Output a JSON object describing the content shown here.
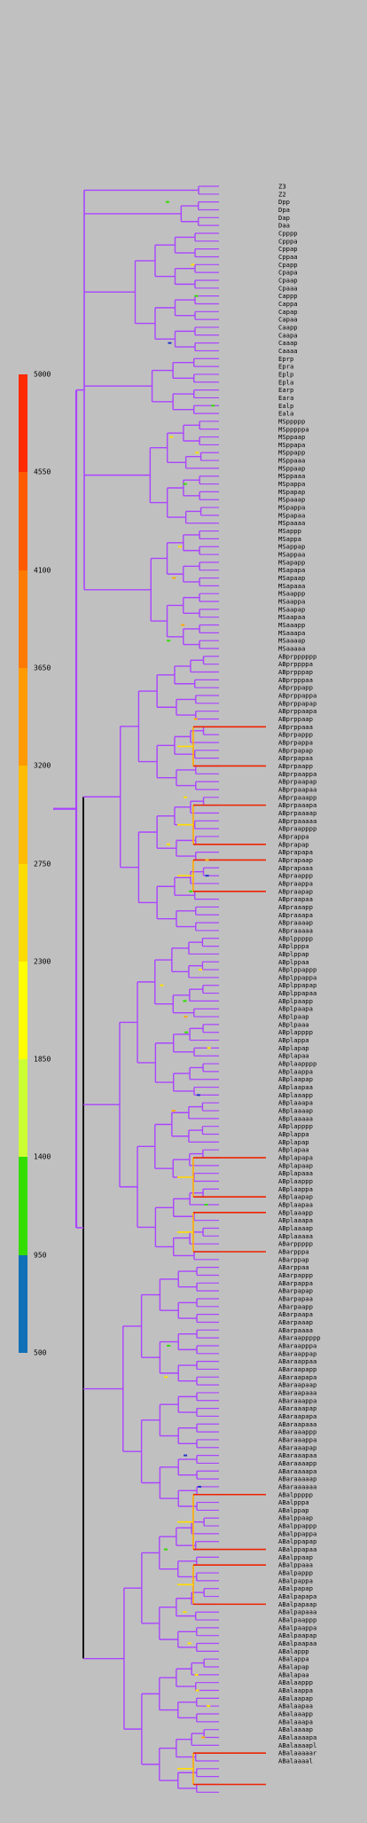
{
  "legend": {
    "ticks": [
      "5000",
      "4550",
      "4100",
      "3650",
      "3200",
      "2750",
      "2300",
      "1850",
      "1400",
      "950",
      "500"
    ],
    "segment_colors": [
      "#ff2a00",
      "#ff5a00",
      "#ff7a00",
      "#ff9a00",
      "#ffbc00",
      "#ffdc00",
      "#ffff00",
      "#ccff33",
      "#33dd00",
      "#1070b8",
      "#aa22ff"
    ]
  },
  "colors": {
    "branch_base": "#aa44ff",
    "branch_dark": "#000000",
    "branch_blue": "#2233cc",
    "branch_green": "#33dd00",
    "branch_yellow": "#ffdd00",
    "branch_orange": "#ffaa00",
    "branch_red": "#ee2200"
  },
  "leaves": [
    "Z3",
    "Z2",
    "Dpp",
    "Dpa",
    "Dap",
    "Daa",
    "Cpppp",
    "Cpppa",
    "Cppap",
    "Cppaa",
    "Cpapp",
    "Cpapa",
    "Cpaap",
    "Cpaaa",
    "Cappp",
    "Cappa",
    "Capap",
    "Capaa",
    "Caapp",
    "Caapa",
    "Caaap",
    "Caaaa",
    "Eprp",
    "Epra",
    "Eplp",
    "Epla",
    "Earp",
    "Eara",
    "Ealp",
    "Eala",
    "MSppppp",
    "MSpppppa",
    "MSppaap",
    "MSppapa",
    "MSppapp",
    "MSppaaa",
    "MSppaap",
    "MSppaaa",
    "MSpappa",
    "MSpapap",
    "MSpaaap",
    "MSpappa",
    "MSpapaa",
    "MSpaaaa",
    "MSappp",
    "MSappa",
    "MSappap",
    "MSappaa",
    "MSapapp",
    "MSapapa",
    "MSapaap",
    "MSapaaa",
    "MSaappp",
    "MSaappa",
    "MSaapap",
    "MSaapaa",
    "MSaaapp",
    "MSaaapa",
    "MSaaaap",
    "MSaaaaa",
    "ABprpppppp",
    "ABprppppa",
    "ABprpppap",
    "ABprpppaa",
    "ABprppapp",
    "ABprppappa",
    "ABprppapap",
    "ABprppaapa",
    "ABprppaap",
    "ABprppaaa",
    "ABprpappp",
    "ABprpappa",
    "ABprpapap",
    "ABprpapaa",
    "ABprpaapp",
    "ABprpaappa",
    "ABprpaapap",
    "ABprpaapaa",
    "ABprpaaapp",
    "ABprpaaapa",
    "ABprpaaaap",
    "ABprpaaaaa",
    "ABpraapppp",
    "ABprappa",
    "ABprapap",
    "ABprapapa",
    "ABprapaap",
    "ABprapaaa",
    "ABpraappp",
    "ABpraappa",
    "ABpraapap",
    "ABpraapaa",
    "ABpraaapp",
    "ABpraaapa",
    "ABpraaaap",
    "ABpraaaaa",
    "ABplppppp",
    "ABplpppa",
    "ABplppap",
    "ABplppaa",
    "ABplppappp",
    "ABplppappa",
    "ABplppapap",
    "ABplppapaa",
    "ABplpaapp",
    "ABplpaapa",
    "ABplpaap",
    "ABplpaaa",
    "ABplapppp",
    "ABplappa",
    "ABplapap",
    "ABplapaa",
    "ABplaapppp",
    "ABplaappa",
    "ABplaapap",
    "ABplaapaa",
    "ABplaaapp",
    "ABplaaapa",
    "ABplaaaap",
    "ABplaaaaa",
    "ABplapppp",
    "ABplappa",
    "ABplapap",
    "ABplapaa",
    "ABplapapa",
    "ABplapaap",
    "ABplapaaa",
    "ABplaappp",
    "ABplaappa",
    "ABplaapap",
    "ABplaapaa",
    "ABplaaapp",
    "ABplaaapa",
    "ABplaaaap",
    "ABplaaaaa",
    "ABarppppp",
    "ABarpppa",
    "ABarppap",
    "ABarppaa",
    "ABarpappp",
    "ABarpappa",
    "ABarpapap",
    "ABarpapaa",
    "ABarpaapp",
    "ABarpaapa",
    "ABarpaaap",
    "ABarpaaaa",
    "ABaraappppp",
    "ABaraapppa",
    "ABaraappap",
    "ABaraappaa",
    "ABaraapapp",
    "ABaraapapa",
    "ABaraapaap",
    "ABaraapaaa",
    "ABaraaappa",
    "ABaraaapap",
    "ABaraapapa",
    "ABaraapaaa",
    "ABaraaappp",
    "ABaraaappa",
    "ABaraaapap",
    "ABaraaapaa",
    "ABaraaaapp",
    "ABaraaaapa",
    "ABaraaaaap",
    "ABaraaaaaa",
    "ABalppppp",
    "ABalpppa",
    "ABalppap",
    "ABalppaap",
    "ABalppappp",
    "ABalppappa",
    "ABalppapap",
    "ABalppapaa",
    "ABalppaap",
    "ABalppaaa",
    "ABalpappp",
    "ABalpappa",
    "ABalpapap",
    "ABalpapapa",
    "ABalpapaap",
    "ABalpapaaa",
    "ABalpaappp",
    "ABalpaappa",
    "ABalpaapap",
    "ABalpaapaa",
    "ABalappp",
    "ABalappa",
    "ABalapap",
    "ABalapaa",
    "ABalaappp",
    "ABalaappa",
    "ABalaapap",
    "ABalaapaa",
    "ABalaaapp",
    "ABalaaapa",
    "ABalaaaap",
    "ABalaaaapa",
    "ABalaaaapl",
    "ABalaaaaar",
    "ABalaaaal"
  ]
}
